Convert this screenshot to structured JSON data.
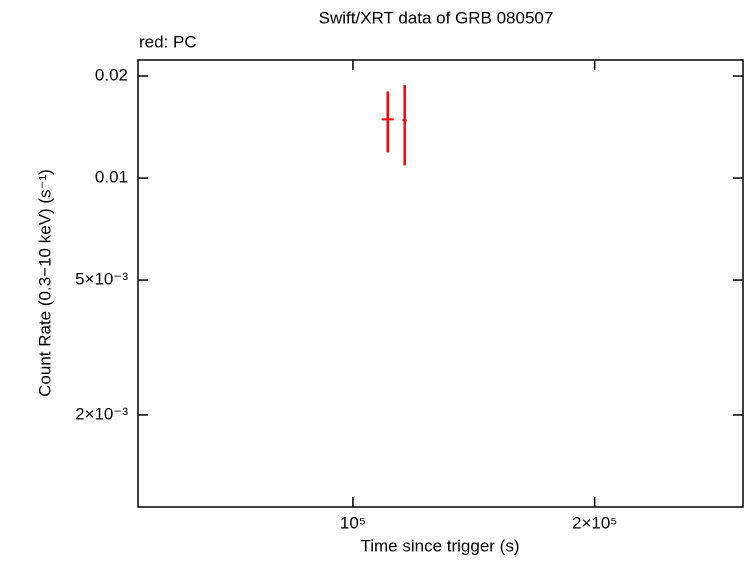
{
  "chart_data": {
    "type": "errorbar",
    "title": "Swift/XRT data of GRB 080507",
    "xlabel": "Time since trigger (s)",
    "ylabel": "Count Rate (0.3−10 keV) (s⁻¹)",
    "xscale": "log",
    "yscale": "log",
    "xlim": [
      54000,
      306000
    ],
    "ylim": [
      0.00107,
      0.0223
    ],
    "xticks": [
      {
        "value": 100000,
        "label": "10⁵"
      },
      {
        "value": 200000,
        "label": "2×10⁵"
      }
    ],
    "yticks": [
      {
        "value": 0.002,
        "label": "2×10⁻³"
      },
      {
        "value": 0.005,
        "label": "5×10⁻³"
      },
      0.01,
      0.02
    ],
    "series": [
      {
        "name": "red: PC",
        "color": "#ff0000",
        "x": [
          110500,
          116000
        ],
        "x_lower": [
          108600,
          115300
        ],
        "x_upper": [
          112400,
          116700
        ],
        "values": [
          0.0149,
          0.0148
        ],
        "y_lower": [
          0.0119,
          0.0109
        ],
        "y_upper": [
          0.018,
          0.0188
        ]
      }
    ]
  }
}
